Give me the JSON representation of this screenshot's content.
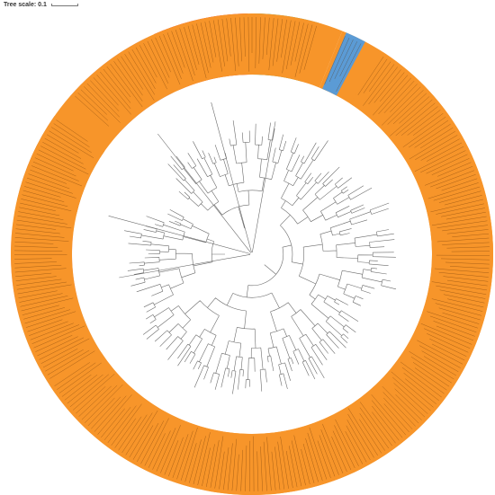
{
  "header": {
    "tree_scale_label": "Tree scale: 0.1"
  },
  "clades": [
    {
      "name": "",
      "color": "#f7952a",
      "start": 22,
      "end": 237
    },
    {
      "name": "",
      "color": "#c8c8c8",
      "start": 237,
      "end": 256
    },
    {
      "name": "",
      "color": "#e9a2c9",
      "start": 256,
      "end": 276
    },
    {
      "name": "",
      "color": "#f6d98e",
      "start": 276,
      "end": 283
    },
    {
      "name": "",
      "color": "#c0640f",
      "start": 283,
      "end": 305
    },
    {
      "name": "",
      "color": "#c7a5da",
      "start": 311,
      "end": 334
    },
    {
      "name": "",
      "color": "#ef1414",
      "start": 336,
      "end": 359
    },
    {
      "name": "",
      "color": "#2fa84f",
      "start": 360,
      "end": 376
    },
    {
      "name": "",
      "color": "#5b9bd5",
      "start": 383,
      "end": 388
    },
    {
      "name": "",
      "color": "#f7952a",
      "start": 393,
      "end": 382
    }
  ],
  "ring_colors": {
    "label_text": "#5a2a00",
    "tree_branches": "#6b6b6b"
  }
}
